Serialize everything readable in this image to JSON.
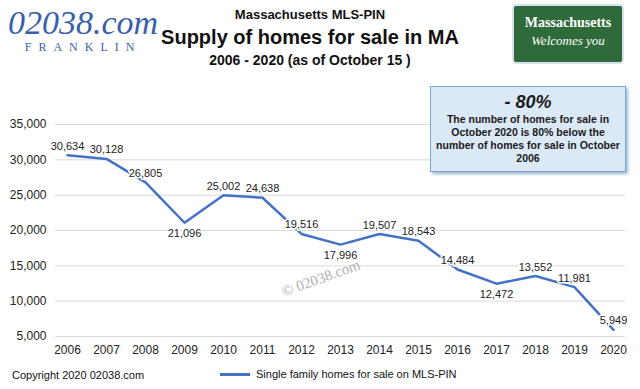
{
  "chart_data": {
    "type": "line",
    "logo": "02038.com",
    "logo_subtitle": "FRANKLIN",
    "badge": [
      "Massachusetts",
      "Welcomes you"
    ],
    "supertitle": "Massachusetts MLS-PIN",
    "title": "Supply of homes for sale in MA",
    "subtitle": "2006 - 2020 (as of October 15 )",
    "categories": [
      "2006",
      "2007",
      "2008",
      "2009",
      "2010",
      "2011",
      "2012",
      "2013",
      "2014",
      "2015",
      "2016",
      "2017",
      "2018",
      "2019",
      "2020"
    ],
    "series": [
      {
        "name": "Single family homes for sale on MLS-PIN",
        "color": "#4472c4",
        "values": [
          30634,
          30128,
          26805,
          21096,
          25002,
          24638,
          19516,
          17996,
          19507,
          18543,
          14484,
          12472,
          13552,
          11981,
          5949
        ],
        "value_labels": [
          "30,634",
          "30,128",
          "26,805",
          "21,096",
          "25,002",
          "24,638",
          "19,516",
          "17,996",
          "19,507",
          "18,543",
          "14,484",
          "12,472",
          "13,552",
          "11,981",
          "5,949"
        ]
      }
    ],
    "ylim": [
      5000,
      35000
    ],
    "yticks": [
      {
        "value": 5000,
        "label": "5,000"
      },
      {
        "value": 10000,
        "label": "10,000"
      },
      {
        "value": 15000,
        "label": "15,000"
      },
      {
        "value": 20000,
        "label": "20,000"
      },
      {
        "value": 25000,
        "label": "25,000"
      },
      {
        "value": 30000,
        "label": "30,000"
      },
      {
        "value": 35000,
        "label": "35,000"
      }
    ],
    "grid": true,
    "data_labels": true,
    "legend": "bottom",
    "annotations": [
      {
        "headline": "- 80%",
        "text": "The number of homes for sale in October 2020 is 80% below the number of homes for sale in October 2006"
      }
    ],
    "watermark": "© 02038.com",
    "copyright": "Copyright 2020 02038.com"
  }
}
